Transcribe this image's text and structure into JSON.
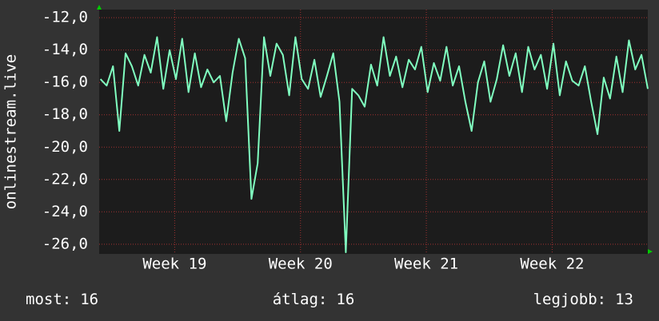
{
  "chart_data": {
    "type": "line",
    "y_label": "onlinestream.live",
    "xlim": [
      18.4,
      22.76
    ],
    "ylim": [
      -26.6,
      -11.5
    ],
    "xticks": [
      {
        "value": 19,
        "label": "Week 19"
      },
      {
        "value": 20,
        "label": "Week 20"
      },
      {
        "value": 21,
        "label": "Week 21"
      },
      {
        "value": 22,
        "label": "Week 22"
      }
    ],
    "yticks": [
      {
        "value": -12,
        "label": "-12,0"
      },
      {
        "value": -14,
        "label": "-14,0"
      },
      {
        "value": -16,
        "label": "-16,0"
      },
      {
        "value": -18,
        "label": "-18,0"
      },
      {
        "value": -20,
        "label": "-20,0"
      },
      {
        "value": -22,
        "label": "-22,0"
      },
      {
        "value": -24,
        "label": "-24,0"
      },
      {
        "value": -26,
        "label": "-26,0"
      }
    ],
    "grid": true,
    "x": [
      18.41,
      18.46,
      18.51,
      18.56,
      18.61,
      18.66,
      18.71,
      18.76,
      18.81,
      18.86,
      18.91,
      18.96,
      19.01,
      19.06,
      19.11,
      19.16,
      19.21,
      19.26,
      19.31,
      19.36,
      19.41,
      19.46,
      19.51,
      19.56,
      19.61,
      19.66,
      19.71,
      19.76,
      19.81,
      19.86,
      19.91,
      19.96,
      20.01,
      20.06,
      20.11,
      20.16,
      20.21,
      20.26,
      20.31,
      20.36,
      20.41,
      20.46,
      20.51,
      20.56,
      20.61,
      20.66,
      20.71,
      20.76,
      20.81,
      20.86,
      20.91,
      20.96,
      21.01,
      21.06,
      21.11,
      21.16,
      21.21,
      21.26,
      21.31,
      21.36,
      21.41,
      21.46,
      21.51,
      21.56,
      21.61,
      21.66,
      21.71,
      21.76,
      21.81,
      21.86,
      21.91,
      21.96,
      22.01,
      22.06,
      22.11,
      22.16,
      22.21,
      22.26,
      22.31,
      22.36,
      22.41,
      22.46,
      22.51,
      22.56,
      22.61,
      22.66,
      22.71,
      22.76
    ],
    "series": [
      {
        "color": "#80ffc0",
        "values": [
          -15.8,
          -16.2,
          -15.0,
          -19.0,
          -14.2,
          -15.0,
          -16.2,
          -14.3,
          -15.4,
          -13.2,
          -16.4,
          -14.0,
          -15.8,
          -13.3,
          -16.6,
          -14.2,
          -16.3,
          -15.2,
          -16.0,
          -15.6,
          -18.4,
          -15.4,
          -13.3,
          -14.5,
          -23.2,
          -21.0,
          -13.2,
          -15.6,
          -13.6,
          -14.3,
          -16.8,
          -13.2,
          -15.8,
          -16.4,
          -14.6,
          -16.9,
          -15.6,
          -14.2,
          -17.2,
          -26.5,
          -16.4,
          -16.8,
          -17.5,
          -14.9,
          -16.2,
          -13.2,
          -15.6,
          -14.4,
          -16.3,
          -14.6,
          -15.2,
          -13.8,
          -16.6,
          -14.8,
          -15.9,
          -13.8,
          -16.2,
          -15.0,
          -17.2,
          -19.0,
          -16.0,
          -14.7,
          -17.2,
          -15.8,
          -13.7,
          -15.6,
          -14.2,
          -16.6,
          -13.8,
          -15.2,
          -14.3,
          -16.4,
          -13.6,
          -16.8,
          -14.7,
          -15.9,
          -16.2,
          -15.0,
          -17.2,
          -19.2,
          -15.7,
          -17.0,
          -14.4,
          -16.6,
          -13.4,
          -15.2,
          -14.3,
          -16.4
        ]
      }
    ],
    "stats": [
      {
        "label": "most:",
        "value": 16
      },
      {
        "label": "átlag:",
        "value": 16
      },
      {
        "label": "legjobb:",
        "value": 13
      }
    ]
  }
}
